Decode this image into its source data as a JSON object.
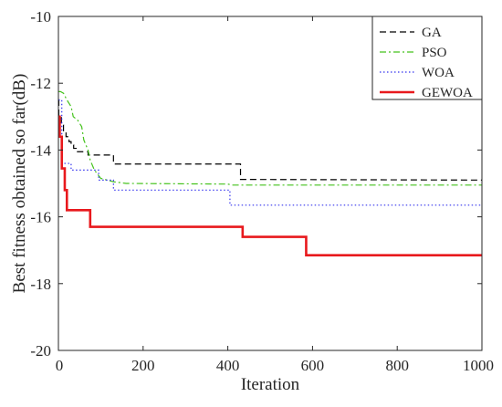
{
  "chart_data": {
    "type": "line",
    "title": "",
    "xlabel": "Iteration",
    "ylabel": "Best fitness obtained so far(dB)",
    "xlim": [
      0,
      1000
    ],
    "ylim": [
      -20,
      -10
    ],
    "xticks": [
      0,
      200,
      400,
      600,
      800,
      1000
    ],
    "yticks": [
      -20,
      -18,
      -16,
      -14,
      -12,
      -10
    ],
    "xtick_labels": [
      "0",
      "200",
      "400",
      "600",
      "800",
      "1000"
    ],
    "ytick_labels": [
      "-20",
      "-18",
      "-16",
      "-14",
      "-12",
      "-10"
    ],
    "grid": false,
    "legend_position": "top-right",
    "series": [
      {
        "name": "GA",
        "color": "#000000",
        "dash": "dashed",
        "width": 1.2,
        "x": [
          0,
          1,
          1,
          7,
          7,
          12,
          12,
          18,
          18,
          25,
          25,
          30,
          30,
          36,
          36,
          42,
          42,
          70,
          70,
          130,
          130,
          430,
          430,
          1000
        ],
        "y": [
          -12.5,
          -12.5,
          -13.0,
          -13.0,
          -13.25,
          -13.25,
          -13.45,
          -13.45,
          -13.6,
          -13.6,
          -13.75,
          -13.75,
          -13.85,
          -13.85,
          -13.95,
          -13.95,
          -14.05,
          -14.05,
          -14.15,
          -14.15,
          -14.42,
          -14.42,
          -14.88,
          -14.9
        ]
      },
      {
        "name": "PSO",
        "color": "#44c21c",
        "dash": "dashdot",
        "width": 1.2,
        "x": [
          0,
          5,
          12,
          20,
          30,
          35,
          45,
          55,
          60,
          70,
          75,
          85,
          100,
          130,
          160,
          400,
          410,
          1000
        ],
        "y": [
          -12.25,
          -12.25,
          -12.3,
          -12.5,
          -12.7,
          -13.0,
          -13.1,
          -13.3,
          -13.7,
          -14.0,
          -14.3,
          -14.6,
          -14.85,
          -14.95,
          -15.0,
          -15.02,
          -15.05,
          -15.05
        ]
      },
      {
        "name": "WOA",
        "color": "#3333ee",
        "dash": "dotted",
        "width": 1.2,
        "x": [
          0,
          8,
          8,
          30,
          30,
          95,
          95,
          130,
          130,
          405,
          405,
          1000
        ],
        "y": [
          -12.5,
          -12.5,
          -14.4,
          -14.4,
          -14.6,
          -14.6,
          -14.9,
          -14.9,
          -15.2,
          -15.2,
          -15.65,
          -15.65
        ]
      },
      {
        "name": "GEWOA",
        "color": "#e8191d",
        "dash": "solid",
        "width": 2.6,
        "x": [
          0,
          3,
          3,
          8,
          8,
          15,
          15,
          20,
          20,
          25,
          25,
          75,
          75,
          435,
          435,
          585,
          585,
          1000
        ],
        "y": [
          -13.0,
          -13.0,
          -13.6,
          -13.6,
          -14.55,
          -14.55,
          -15.2,
          -15.2,
          -15.8,
          -15.8,
          -15.8,
          -15.8,
          -16.3,
          -16.3,
          -16.6,
          -16.6,
          -17.15,
          -17.15
        ]
      }
    ]
  }
}
